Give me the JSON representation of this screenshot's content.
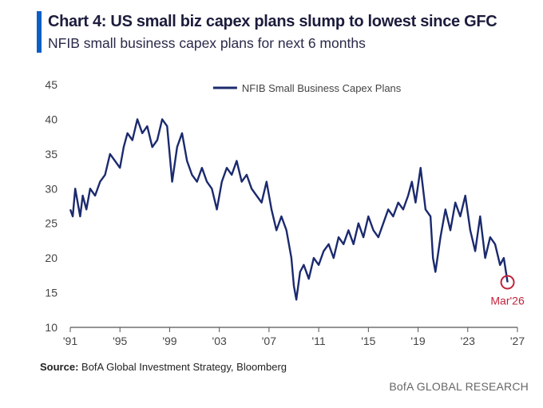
{
  "colors": {
    "accent": "#0a5ec4",
    "line": "#1b2a6e",
    "highlight": "#c0243c",
    "axis": "#555555",
    "text": "#444444"
  },
  "header": {
    "title": "Chart 4: US small biz capex plans slump to lowest since GFC",
    "subtitle": "NFIB small business capex plans for next 6 months"
  },
  "footer": {
    "source_label": "Source:",
    "source_text": " BofA Global Investment Strategy, Bloomberg",
    "brand": "BofA GLOBAL RESEARCH"
  },
  "chart_data": {
    "type": "line",
    "title": "NFIB small business capex plans for next 6 months",
    "xlabel": "",
    "ylabel": "",
    "xlim": [
      1991,
      2027
    ],
    "ylim": [
      10,
      45
    ],
    "x_ticks": [
      1991,
      1995,
      1999,
      2003,
      2007,
      2011,
      2015,
      2019,
      2023,
      2027
    ],
    "x_tick_labels": [
      "'91",
      "'95",
      "'99",
      "'03",
      "'07",
      "'11",
      "'15",
      "'19",
      "'23",
      "'27"
    ],
    "y_ticks": [
      10,
      15,
      20,
      25,
      30,
      35,
      40,
      45
    ],
    "y_tick_labels": [
      "10",
      "15",
      "20",
      "25",
      "30",
      "35",
      "40",
      "45"
    ],
    "legend": {
      "position": "top-center",
      "entries": [
        "NFIB Small Business Capex Plans"
      ]
    },
    "annotations": [
      {
        "text": "Mar'26",
        "x": 2026.2,
        "y": 16.5
      }
    ],
    "series": [
      {
        "name": "NFIB Small Business Capex Plans",
        "x": [
          1991.0,
          1991.2,
          1991.4,
          1991.6,
          1991.8,
          1992.0,
          1992.3,
          1992.6,
          1993.0,
          1993.4,
          1993.8,
          1994.2,
          1994.6,
          1995.0,
          1995.3,
          1995.6,
          1996.0,
          1996.4,
          1996.8,
          1997.2,
          1997.6,
          1998.0,
          1998.4,
          1998.8,
          1999.2,
          1999.6,
          2000.0,
          2000.4,
          2000.8,
          2001.2,
          2001.6,
          2002.0,
          2002.4,
          2002.8,
          2003.2,
          2003.6,
          2004.0,
          2004.4,
          2004.8,
          2005.2,
          2005.6,
          2006.0,
          2006.4,
          2006.8,
          2007.2,
          2007.6,
          2008.0,
          2008.4,
          2008.8,
          2009.0,
          2009.2,
          2009.5,
          2009.8,
          2010.2,
          2010.6,
          2011.0,
          2011.4,
          2011.8,
          2012.2,
          2012.6,
          2013.0,
          2013.4,
          2013.8,
          2014.2,
          2014.6,
          2015.0,
          2015.4,
          2015.8,
          2016.2,
          2016.6,
          2017.0,
          2017.4,
          2017.8,
          2018.2,
          2018.5,
          2018.8,
          2019.2,
          2019.6,
          2020.0,
          2020.2,
          2020.4,
          2020.8,
          2021.2,
          2021.6,
          2022.0,
          2022.4,
          2022.8,
          2023.2,
          2023.6,
          2024.0,
          2024.4,
          2024.8,
          2025.2,
          2025.6,
          2025.9,
          2026.2
        ],
        "values": [
          27,
          26,
          30,
          28,
          26,
          29,
          27,
          30,
          29,
          31,
          32,
          35,
          34,
          33,
          36,
          38,
          37,
          40,
          38,
          39,
          36,
          37,
          40,
          39,
          31,
          36,
          38,
          34,
          32,
          31,
          33,
          31,
          30,
          27,
          31,
          33,
          32,
          34,
          31,
          32,
          30,
          29,
          28,
          31,
          27,
          24,
          26,
          24,
          20,
          16,
          14,
          18,
          19,
          17,
          20,
          19,
          21,
          22,
          20,
          23,
          22,
          24,
          22,
          25,
          23,
          26,
          24,
          23,
          25,
          27,
          26,
          28,
          27,
          29,
          31,
          28,
          33,
          27,
          26,
          20,
          18,
          23,
          27,
          24,
          28,
          26,
          29,
          24,
          21,
          26,
          20,
          23,
          22,
          19,
          20,
          16.5
        ]
      }
    ]
  }
}
